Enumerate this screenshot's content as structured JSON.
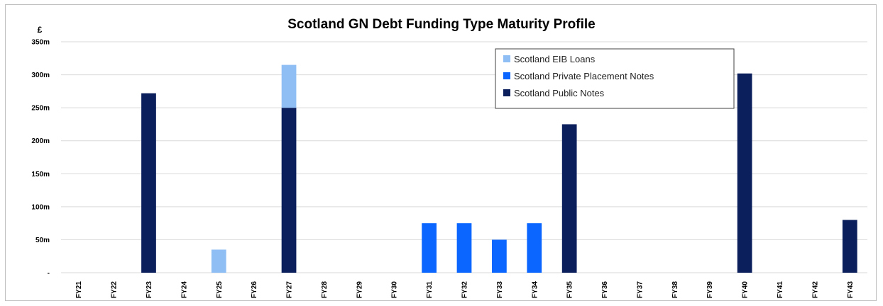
{
  "chart_data": {
    "type": "bar",
    "stacked": true,
    "title": "Scotland GN Debt Funding Type Maturity Profile",
    "unit_label": "£",
    "ylim": [
      0,
      350
    ],
    "yticks": [
      {
        "value": 0,
        "label": "-"
      },
      {
        "value": 50,
        "label": "50m"
      },
      {
        "value": 100,
        "label": "100m"
      },
      {
        "value": 150,
        "label": "150m"
      },
      {
        "value": 200,
        "label": "200m"
      },
      {
        "value": 250,
        "label": "250m"
      },
      {
        "value": 300,
        "label": "300m"
      },
      {
        "value": 350,
        "label": "350m"
      }
    ],
    "grid": true,
    "legend_position": "top-right",
    "categories": [
      "FY21",
      "FY22",
      "FY23",
      "FY24",
      "FY25",
      "FY26",
      "FY27",
      "FY28",
      "FY29",
      "FY30",
      "FY31",
      "FY32",
      "FY33",
      "FY34",
      "FY35",
      "FY36",
      "FY37",
      "FY38",
      "FY39",
      "FY40",
      "FY41",
      "FY42",
      "FY43"
    ],
    "series": [
      {
        "name": "Scotland Public Notes",
        "color": "#0b1f5c",
        "values": [
          0,
          0,
          272,
          0,
          0,
          0,
          250,
          0,
          0,
          0,
          0,
          0,
          0,
          0,
          225,
          0,
          0,
          0,
          0,
          302,
          0,
          0,
          80
        ]
      },
      {
        "name": "Scotland Private Placement Notes",
        "color": "#0a66ff",
        "values": [
          0,
          0,
          0,
          0,
          0,
          0,
          0,
          0,
          0,
          0,
          75,
          75,
          50,
          75,
          0,
          0,
          0,
          0,
          0,
          0,
          0,
          0,
          0
        ]
      },
      {
        "name": "Scotland EIB Loans",
        "color": "#8fbef5",
        "values": [
          0,
          0,
          0,
          0,
          35,
          0,
          65,
          0,
          0,
          0,
          0,
          0,
          0,
          0,
          0,
          0,
          0,
          0,
          0,
          0,
          0,
          0,
          0
        ]
      }
    ],
    "legend_order": [
      "Scotland EIB Loans",
      "Scotland Private Placement Notes",
      "Scotland Public Notes"
    ]
  }
}
